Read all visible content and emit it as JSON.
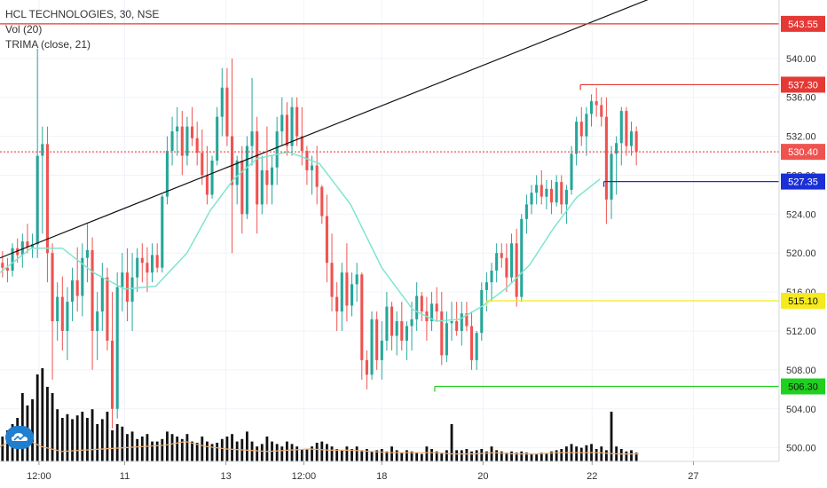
{
  "legend": {
    "title": "HCL TECHNOLOGIES, 30, NSE",
    "volume": "Vol (20)",
    "indicator": "TRIMA (close, 21)"
  },
  "colors": {
    "up": "#26a69a",
    "down": "#ef5350",
    "trima": "#7fe5cf",
    "volume": "#111111",
    "volume_ma": "#f0b27a",
    "trendline": "#111111",
    "last_price": "#ef5350",
    "level_543": "#e53935",
    "level_537": "#e53935",
    "level_527": "#1a2fd6",
    "level_515": "#f5ea1c",
    "level_506": "#1fd01f"
  },
  "logo": {
    "icon": "cloud-logo-icon"
  },
  "chart_data": {
    "type": "candlestick",
    "title": "HCL TECHNOLOGIES, 30, NSE",
    "y_axis_ticks": [
      "540.00",
      "536.00",
      "532.00",
      "528.00",
      "524.00",
      "520.00",
      "516.00",
      "512.00",
      "508.00",
      "504.00",
      "500.00"
    ],
    "y_axis_values": [
      540,
      536,
      532,
      528,
      524,
      520,
      516,
      512,
      508,
      504,
      500
    ],
    "ylim": [
      498.6,
      546.0
    ],
    "x_axis_ticks": [
      "12:00",
      "11",
      "13",
      "12:00",
      "18",
      "20",
      "22",
      "27"
    ],
    "x_axis_positions": [
      0.05,
      0.16,
      0.29,
      0.39,
      0.49,
      0.62,
      0.76,
      0.89
    ],
    "x_tick_note": "x_axis_positions are the tick labels' places along the time axis, as fractions of the axis length",
    "price_levels": [
      {
        "label": "543.55",
        "value": 543.55,
        "color_key": "level_543",
        "start_fraction": 0.0
      },
      {
        "label": "537.30",
        "value": 537.3,
        "color_key": "level_537",
        "start_fraction": 0.745
      },
      {
        "label": "530.40",
        "value": 530.4,
        "color_key": "last_price",
        "start_fraction": 0.0,
        "dotted": true
      },
      {
        "label": "527.35",
        "value": 527.35,
        "color_key": "level_527",
        "start_fraction": 0.775
      },
      {
        "label": "515.10",
        "value": 515.1,
        "color_key": "level_515",
        "start_fraction": 0.625
      },
      {
        "label": "506.30",
        "value": 506.3,
        "color_key": "level_506",
        "start_fraction": 0.558
      }
    ],
    "trendline": {
      "start": [
        0.0,
        519.5
      ],
      "end": [
        0.893,
        548.0
      ]
    },
    "series": [
      {
        "name": "Price",
        "type": "candlestick",
        "points_ohlc": [
          [
            519,
            520.2,
            517.5,
            518.5
          ],
          [
            518.5,
            519.5,
            517,
            518.2
          ],
          [
            518.2,
            521,
            517.6,
            520.5
          ],
          [
            520.5,
            521.5,
            519,
            519.8
          ],
          [
            519.8,
            522,
            518.5,
            521.2
          ],
          [
            521.2,
            523,
            520,
            520.6
          ],
          [
            520.6,
            522,
            519.5,
            520.9
          ],
          [
            520.9,
            541,
            519.5,
            530
          ],
          [
            530,
            533,
            522,
            531.2
          ],
          [
            531.2,
            533,
            517,
            520
          ],
          [
            520,
            521,
            507,
            513
          ],
          [
            513,
            517,
            511,
            515.5
          ],
          [
            515.5,
            517.6,
            510,
            512
          ],
          [
            512,
            516.5,
            509,
            515
          ],
          [
            515,
            518.5,
            513,
            517.2
          ],
          [
            517.2,
            520.6,
            514,
            515.6
          ],
          [
            515.6,
            521,
            513.5,
            519.5
          ],
          [
            519.5,
            523,
            517,
            520.3
          ],
          [
            520.3,
            521.6,
            508,
            512
          ],
          [
            512,
            516,
            509,
            514
          ],
          [
            514,
            519,
            512,
            517.5
          ],
          [
            517.5,
            518.5,
            510,
            511
          ],
          [
            511,
            516,
            502,
            504
          ],
          [
            504,
            518,
            503,
            516.5
          ],
          [
            516.5,
            520,
            514,
            518
          ],
          [
            518,
            520.5,
            513,
            515
          ],
          [
            515,
            520,
            512,
            517.5
          ],
          [
            517.5,
            520.5,
            516,
            519.5
          ],
          [
            519.5,
            521,
            517,
            519
          ],
          [
            519,
            520.6,
            516,
            518
          ],
          [
            518,
            521,
            517,
            519.8
          ],
          [
            519.8,
            521,
            518,
            518.5
          ],
          [
            518.5,
            526,
            518,
            525.8
          ],
          [
            525.8,
            532,
            525,
            530.5
          ],
          [
            530.5,
            534,
            529,
            532.5
          ],
          [
            532.5,
            535,
            530,
            533
          ],
          [
            533,
            534.6,
            528,
            530
          ],
          [
            530,
            534,
            529,
            533
          ],
          [
            533,
            535,
            531,
            531.8
          ],
          [
            531.8,
            533.5,
            529,
            530.3
          ],
          [
            530.3,
            532.7,
            527,
            528
          ],
          [
            528,
            531,
            525,
            526
          ],
          [
            526,
            530,
            525.6,
            529.5
          ],
          [
            529.5,
            535,
            529,
            534
          ],
          [
            534,
            539,
            532,
            537
          ],
          [
            537,
            539,
            531,
            532
          ],
          [
            532,
            540,
            520,
            527
          ],
          [
            527,
            530,
            525,
            529.5
          ],
          [
            529.5,
            531,
            522,
            524
          ],
          [
            524,
            532,
            523.5,
            531
          ],
          [
            531,
            538,
            529,
            532.5
          ],
          [
            532.5,
            534,
            522,
            525
          ],
          [
            525,
            530,
            524,
            528.5
          ],
          [
            528.5,
            533,
            525,
            527
          ],
          [
            527,
            530,
            525,
            528.8
          ],
          [
            528.8,
            534,
            527,
            532.5
          ],
          [
            532.5,
            536,
            531,
            534.2
          ],
          [
            534.2,
            535.5,
            530,
            531
          ],
          [
            531,
            536,
            530,
            535
          ],
          [
            535,
            536,
            531,
            532
          ],
          [
            532,
            535,
            529,
            530.5
          ],
          [
            530.5,
            531,
            527,
            528.5
          ],
          [
            528.5,
            530,
            526,
            529
          ],
          [
            529,
            531,
            525,
            526.8
          ],
          [
            526.8,
            527,
            523,
            523.8
          ],
          [
            523.8,
            526,
            517,
            519
          ],
          [
            519,
            522,
            514,
            515.5
          ],
          [
            515.5,
            517,
            512,
            514
          ],
          [
            514,
            519,
            512,
            518
          ],
          [
            518,
            521,
            513,
            514.6
          ],
          [
            514.6,
            518,
            513.5,
            516.8
          ],
          [
            516.8,
            519,
            515,
            517.8
          ],
          [
            517.8,
            518,
            507,
            509
          ],
          [
            509,
            510,
            506,
            507.5
          ],
          [
            507.5,
            514,
            507,
            513.2
          ],
          [
            513.2,
            514,
            508,
            509
          ],
          [
            509,
            513,
            507,
            511
          ],
          [
            511,
            516,
            510,
            514.5
          ],
          [
            514.5,
            515,
            510,
            511.5
          ],
          [
            511.5,
            514,
            509.5,
            513
          ],
          [
            513,
            515,
            510,
            511
          ],
          [
            511,
            513,
            509,
            512.5
          ],
          [
            512.5,
            515,
            510,
            513.2
          ],
          [
            513.2,
            517,
            512,
            515.6
          ],
          [
            515.6,
            516,
            513,
            514
          ],
          [
            514,
            515.5,
            511,
            513
          ],
          [
            513,
            516,
            512,
            514.8
          ],
          [
            514.8,
            516.5,
            513,
            514
          ],
          [
            514,
            516,
            508.5,
            509.5
          ],
          [
            509.5,
            514,
            508.8,
            512.8
          ],
          [
            512.8,
            515,
            511,
            513
          ],
          [
            513,
            515,
            511.5,
            512
          ],
          [
            512,
            515,
            510.5,
            513.8
          ],
          [
            513.8,
            515,
            512,
            512.5
          ],
          [
            512.5,
            514,
            508,
            509
          ],
          [
            509,
            512,
            508,
            511.8
          ],
          [
            511.8,
            517,
            511,
            516.2
          ],
          [
            516.2,
            518,
            514,
            517
          ],
          [
            517,
            519,
            515,
            518.2
          ],
          [
            518.2,
            521,
            517,
            520
          ],
          [
            520,
            521,
            518.5,
            519.5
          ],
          [
            519.5,
            521,
            516,
            517.5
          ],
          [
            517.5,
            522,
            517,
            521
          ],
          [
            521,
            522.5,
            514.5,
            515.5
          ],
          [
            515.5,
            524,
            515,
            523.5
          ],
          [
            523.5,
            526,
            522,
            525
          ],
          [
            525,
            527,
            524,
            526.2
          ],
          [
            526.2,
            528,
            525,
            527
          ],
          [
            527,
            528.5,
            525,
            525.8
          ],
          [
            525.8,
            527.5,
            524.5,
            526.6
          ],
          [
            526.6,
            527.5,
            524,
            525.2
          ],
          [
            525.2,
            528,
            524.8,
            527.3
          ],
          [
            527.3,
            528,
            524,
            525
          ],
          [
            525,
            527,
            523,
            526.5
          ],
          [
            526.5,
            531,
            526,
            530.2
          ],
          [
            530.2,
            534,
            529,
            533.5
          ],
          [
            533.5,
            535,
            531,
            532
          ],
          [
            532,
            535,
            530,
            534.3
          ],
          [
            534.3,
            536.3,
            533,
            535.6
          ],
          [
            535.6,
            537,
            534,
            535.2
          ],
          [
            535.2,
            536,
            533,
            534
          ],
          [
            534,
            536,
            523,
            525.5
          ],
          [
            525.5,
            531,
            523.5,
            530.2
          ],
          [
            530.2,
            532,
            526,
            531.3
          ],
          [
            531.3,
            535,
            529,
            534.6
          ],
          [
            534.6,
            535,
            530,
            531
          ],
          [
            531,
            533.5,
            530,
            532.5
          ],
          [
            532.5,
            533,
            529,
            530.4
          ]
        ]
      },
      {
        "name": "TRIMA (close, 21)",
        "type": "line",
        "x_fractions": [
          0.0,
          0.04,
          0.08,
          0.12,
          0.16,
          0.2,
          0.24,
          0.27,
          0.3,
          0.33,
          0.37,
          0.41,
          0.45,
          0.49,
          0.53,
          0.56,
          0.59,
          0.62,
          0.65,
          0.68,
          0.71,
          0.74,
          0.77
        ],
        "values": [
          518,
          520.5,
          520.5,
          518,
          516.3,
          516.6,
          520,
          524.4,
          527.6,
          529.7,
          530.4,
          529.2,
          525,
          518.5,
          514.2,
          513,
          513.2,
          514.6,
          516.4,
          518.8,
          522.5,
          525.7,
          527.6
        ]
      },
      {
        "name": "Vol (20)",
        "type": "bar",
        "values": [
          0.2,
          0.25,
          0.3,
          0.35,
          0.55,
          0.45,
          0.5,
          0.7,
          0.75,
          0.6,
          0.55,
          0.42,
          0.35,
          0.38,
          0.34,
          0.37,
          0.4,
          0.35,
          0.42,
          0.3,
          0.34,
          0.4,
          0.25,
          0.3,
          0.28,
          0.22,
          0.24,
          0.18,
          0.2,
          0.22,
          0.16,
          0.16,
          0.18,
          0.24,
          0.22,
          0.2,
          0.18,
          0.22,
          0.16,
          0.15,
          0.2,
          0.16,
          0.14,
          0.15,
          0.18,
          0.2,
          0.22,
          0.16,
          0.18,
          0.24,
          0.16,
          0.12,
          0.14,
          0.2,
          0.16,
          0.14,
          0.12,
          0.16,
          0.14,
          0.12,
          0.1,
          0.1,
          0.12,
          0.15,
          0.16,
          0.14,
          0.12,
          0.1,
          0.09,
          0.12,
          0.1,
          0.12,
          0.09,
          0.1,
          0.08,
          0.09,
          0.1,
          0.08,
          0.12,
          0.09,
          0.07,
          0.09,
          0.08,
          0.07,
          0.06,
          0.12,
          0.1,
          0.08,
          0.07,
          0.09,
          0.3,
          0.09,
          0.09,
          0.1,
          0.08,
          0.09,
          0.1,
          0.08,
          0.12,
          0.09,
          0.08,
          0.07,
          0.08,
          0.07,
          0.08,
          0.07,
          0.06,
          0.06,
          0.07,
          0.06,
          0.08,
          0.09,
          0.1,
          0.12,
          0.14,
          0.12,
          0.11,
          0.13,
          0.14,
          0.1,
          0.12,
          0.09,
          0.4,
          0.12,
          0.1,
          0.08,
          0.09,
          0.07
        ]
      },
      {
        "name": "Volume MA",
        "type": "line",
        "values": [
          0.12,
          0.2,
          0.12,
          0.08,
          0.09,
          0.1,
          0.11,
          0.12,
          0.13,
          0.16,
          0.12,
          0.1,
          0.09,
          0.08,
          0.09,
          0.1,
          0.09,
          0.09,
          0.08,
          0.07,
          0.07,
          0.07,
          0.06,
          0.06,
          0.07,
          0.06,
          0.06,
          0.07,
          0.07,
          0.07,
          0.06,
          0.06
        ]
      }
    ]
  }
}
